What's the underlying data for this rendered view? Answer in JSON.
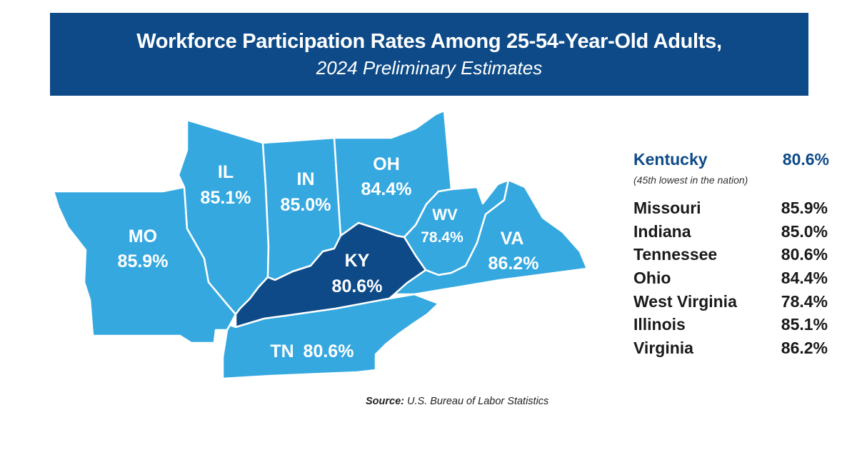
{
  "header": {
    "title": "Workforce Participation Rates Among 25-54-Year-Old Adults,",
    "subtitle": "2024 Preliminary Estimates"
  },
  "map": {
    "states": [
      {
        "abbr": "MO",
        "value": "85.9%",
        "highlight": false
      },
      {
        "abbr": "IL",
        "value": "85.1%",
        "highlight": false
      },
      {
        "abbr": "IN",
        "value": "85.0%",
        "highlight": false
      },
      {
        "abbr": "OH",
        "value": "84.4%",
        "highlight": false
      },
      {
        "abbr": "WV",
        "value": "78.4%",
        "highlight": false
      },
      {
        "abbr": "VA",
        "value": "86.2%",
        "highlight": false
      },
      {
        "abbr": "KY",
        "value": "80.6%",
        "highlight": true
      },
      {
        "abbr": "TN",
        "value": "80.6%",
        "highlight": false
      }
    ],
    "colors": {
      "state_fill": "#35a8e0",
      "kentucky_fill": "#0d4a87",
      "border": "#ffffff"
    }
  },
  "summary": {
    "kentucky": {
      "name": "Kentucky",
      "value": "80.6%",
      "note": "(45th lowest in the nation)"
    },
    "states": [
      {
        "name": "Missouri",
        "value": "85.9%"
      },
      {
        "name": "Indiana",
        "value": "85.0%"
      },
      {
        "name": "Tennessee",
        "value": "80.6%"
      },
      {
        "name": "Ohio",
        "value": "84.4%"
      },
      {
        "name": "West Virginia",
        "value": "78.4%"
      },
      {
        "name": "Illinois",
        "value": "85.1%"
      },
      {
        "name": "Virginia",
        "value": "86.2%"
      }
    ]
  },
  "source": {
    "label": "Source:",
    "text": " U.S. Bureau of Labor Statistics"
  },
  "colors": {
    "banner": "#0d4a87",
    "accent": "#0d4a87"
  }
}
